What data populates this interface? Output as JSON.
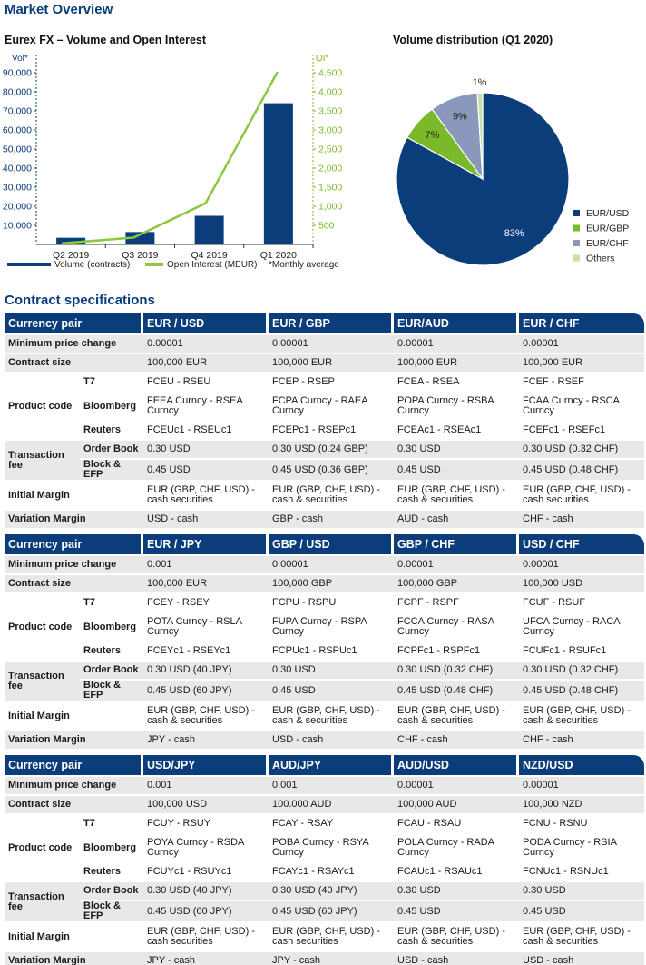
{
  "page_title": "Market Overview",
  "chart_data": [
    {
      "type": "bar",
      "title": "Eurex FX – Volume and Open Interest",
      "categories": [
        "Q2 2019",
        "Q3 2019",
        "Q4 2019",
        "Q1 2020"
      ],
      "ylabel": "Vol*",
      "y2label": "OI*",
      "ylim": [
        0,
        90000
      ],
      "y2lim": [
        0,
        4500
      ],
      "yticks": [
        "10,000",
        "20,000",
        "30,000",
        "40,000",
        "50,000",
        "60,000",
        "70,000",
        "80,000",
        "90,000"
      ],
      "y2ticks": [
        "500",
        "1,000",
        "1,500",
        "2,000",
        "2,500",
        "3,000",
        "3,500",
        "4,000",
        "4,500"
      ],
      "series": [
        {
          "name": "Volume (contracts)",
          "type": "bar",
          "axis": "left",
          "values": [
            3500,
            6500,
            15000,
            74000
          ],
          "color": "#0b3d7a"
        },
        {
          "name": "Open Interest (MEUR)",
          "type": "line",
          "axis": "right",
          "values": [
            30,
            180,
            1080,
            4520
          ],
          "color": "#8dc63f"
        }
      ],
      "note": "*Monthly average",
      "legend": "bottom"
    },
    {
      "type": "pie",
      "title": "Volume distribution (Q1 2020)",
      "labels": [
        "EUR/USD",
        "EUR/GBP",
        "EUR/CHF",
        "Others"
      ],
      "values": [
        83,
        7,
        9,
        1
      ],
      "display": [
        "83%",
        "7%",
        "9%",
        "1%"
      ],
      "colors": [
        "#0b3d7a",
        "#7ab929",
        "#8b98bb",
        "#c7e0a6"
      ],
      "legend": "right"
    }
  ],
  "specs": {
    "title": "Contract specifications",
    "row_labels": {
      "currency_pair": "Currency pair",
      "min_price": "Minimum price change",
      "contract_size": "Contract size",
      "product_code": "Product code",
      "t7": "T7",
      "bloomberg": "Bloomberg",
      "reuters": "Reuters",
      "transaction_fee": "Transaction fee",
      "order_book": "Order Book",
      "block_efp": "Block & EFP",
      "initial_margin": "Initial Margin",
      "variation_margin": "Variation Margin"
    },
    "tables": [
      {
        "pairs": [
          "EUR / USD",
          "EUR / GBP",
          "EUR/AUD",
          "EUR / CHF"
        ],
        "min_price": [
          "0.00001",
          "0.00001",
          "0.00001",
          "0.00001"
        ],
        "contract_size": [
          "100,000 EUR",
          "100,000 EUR",
          "100,000 EUR",
          "100,000 EUR"
        ],
        "t7": [
          "FCEU - RSEU",
          "FCEP - RSEP",
          "FCEA - RSEA",
          "FCEF - RSEF"
        ],
        "bloomberg": [
          "FEEA Curncy - RSEA Curncy",
          "FCPA Curncy - RAEA Curncy",
          "POPA Curncy - RSBA Curncy",
          "FCAA Curncy - RSCA Curncy"
        ],
        "reuters": [
          "FCEUc1 - RSEUc1",
          "FCEPc1 - RSEPc1",
          "FCEAc1 - RSEAc1",
          "FCEFc1 - RSEFc1"
        ],
        "order_book": [
          "0.30 USD",
          "0.30 USD (0.24 GBP)",
          "0.30 USD",
          "0.30 USD (0.32 CHF)"
        ],
        "block_efp": [
          "0.45 USD",
          "0.45 USD (0.36 GBP)",
          "0.45 USD",
          "0.45 USD (0.48 CHF)"
        ],
        "initial_margin": [
          "EUR (GBP, CHF, USD) - cash securities",
          "EUR (GBP, CHF, USD) - cash & securities",
          "EUR (GBP, CHF, USD) - cash & securities",
          "EUR (GBP, CHF, USD) - cash securities"
        ],
        "variation_margin": [
          "USD - cash",
          "GBP - cash",
          "AUD - cash",
          "CHF - cash"
        ]
      },
      {
        "pairs": [
          "EUR / JPY",
          "GBP / USD",
          "GBP / CHF",
          "USD / CHF"
        ],
        "min_price": [
          "0.001",
          "0.00001",
          "0.00001",
          "0.00001"
        ],
        "contract_size": [
          "100,000 EUR",
          "100,000 GBP",
          "100,000 GBP",
          "100,000 USD"
        ],
        "t7": [
          "FCEY - RSEY",
          "FCPU - RSPU",
          "FCPF - RSPF",
          "FCUF - RSUF"
        ],
        "bloomberg": [
          "POTA Curncy - RSLA Curncy",
          "FUPA Curncy - RSPA Curncy",
          "FCCA Curncy - RASA Curncy",
          "UFCA Curncy - RACA Curncy"
        ],
        "reuters": [
          "FCEYc1 - RSEYc1",
          "FCPUc1 - RSPUc1",
          "FCPFc1 - RSPFc1",
          "FCUFc1 - RSUFc1"
        ],
        "order_book": [
          "0.30 USD (40 JPY)",
          "0.30 USD",
          "0.30 USD (0.32 CHF)",
          "0.30 USD (0.32 CHF)"
        ],
        "block_efp": [
          "0.45 USD (60 JPY)",
          "0.45 USD",
          "0.45 USD (0.48 CHF)",
          "0.45 USD (0.48 CHF)"
        ],
        "initial_margin": [
          "EUR (GBP, CHF, USD) - cash & securities",
          "EUR (GBP, CHF, USD) - cash & securities",
          "EUR (GBP, CHF, USD) - cash & securities",
          "EUR (GBP, CHF, USD) - cash & securities"
        ],
        "variation_margin": [
          "JPY - cash",
          "USD - cash",
          "CHF - cash",
          "CHF - cash"
        ]
      },
      {
        "pairs": [
          "USD/JPY",
          "AUD/JPY",
          "AUD/USD",
          "NZD/USD"
        ],
        "min_price": [
          "0.001",
          "0.001",
          "0.00001",
          "0.00001"
        ],
        "contract_size": [
          "100,000 USD",
          "100.000 AUD",
          "100,000 AUD",
          "100,000 NZD"
        ],
        "t7": [
          "FCUY - RSUY",
          "FCAY - RSAY",
          "FCAU - RSAU",
          "FCNU - RSNU"
        ],
        "bloomberg": [
          "POYA Curncy - RSDA Curncy",
          "POBA Curncy - RSYA Curncy",
          "POLA Curncy - RADA Curncy",
          "PODA Curncy - RSIA Curncy"
        ],
        "reuters": [
          "FCUYc1 - RSUYc1",
          "FCAYc1 - RSAYc1",
          "FCAUc1 - RSAUc1",
          "FCNUc1 - RSNUc1"
        ],
        "order_book": [
          "0.30 USD (40 JPY)",
          "0.30 USD (40 JPY)",
          "0.30 USD",
          "0.30 USD"
        ],
        "block_efp": [
          "0.45 USD (60 JPY)",
          "0.45 USD (60 JPY)",
          "0.45 USD",
          "0.45 USD"
        ],
        "initial_margin": [
          "EUR (GBP, CHF, USD) - cash securities",
          "EUR (GBP, CHF, USD) - cash securities",
          "EUR (GBP, CHF, USD) - cash & securities",
          "EUR (GBP, CHF, USD) - cash & securities"
        ],
        "variation_margin": [
          "JPY - cash",
          "JPY - cash",
          "USD - cash",
          "USD - cash"
        ]
      }
    ]
  }
}
